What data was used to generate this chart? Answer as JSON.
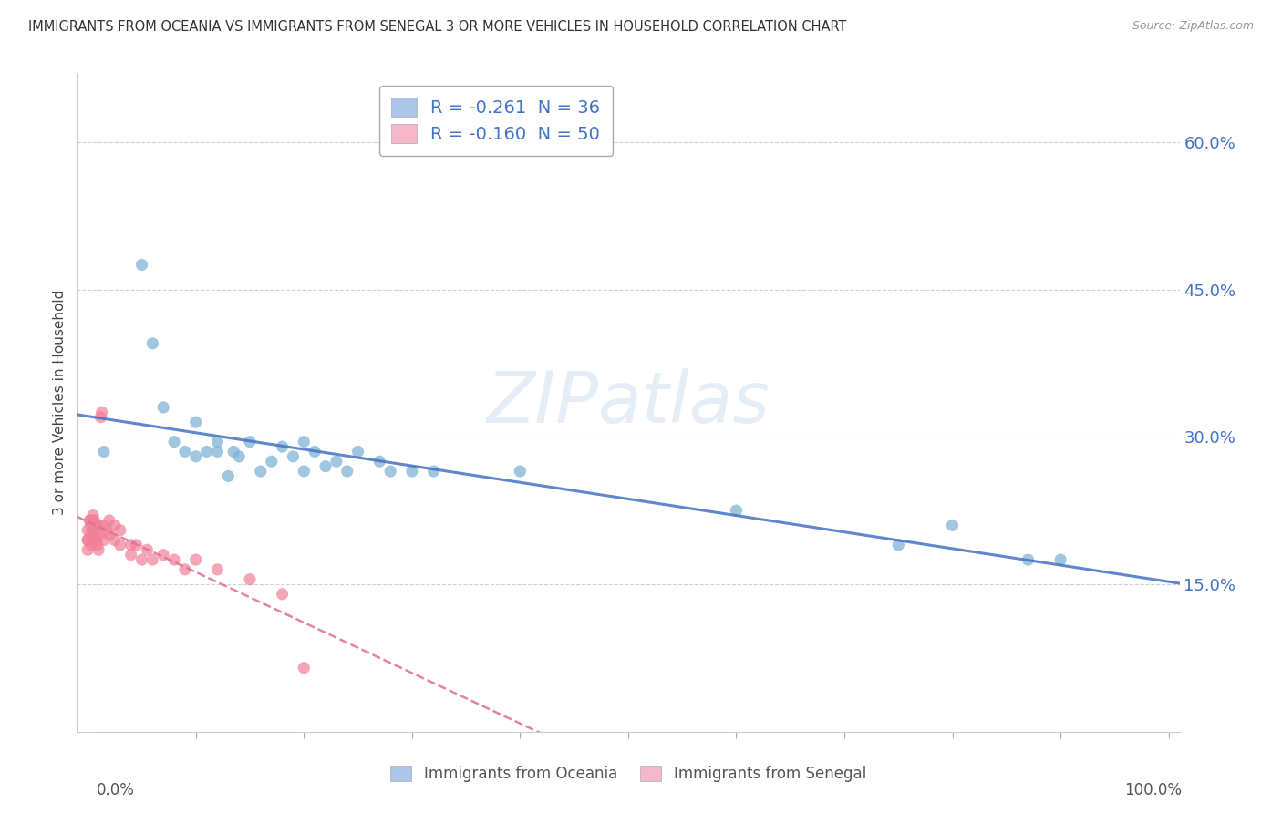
{
  "title": "IMMIGRANTS FROM OCEANIA VS IMMIGRANTS FROM SENEGAL 3 OR MORE VEHICLES IN HOUSEHOLD CORRELATION CHART",
  "source": "Source: ZipAtlas.com",
  "ylabel": "3 or more Vehicles in Household",
  "ytick_vals": [
    0.15,
    0.3,
    0.45,
    0.6
  ],
  "ytick_labels": [
    "15.0%",
    "30.0%",
    "45.0%",
    "60.0%"
  ],
  "legend1_text": "R = -0.261  N = 36",
  "legend2_text": "R = -0.160  N = 50",
  "legend1_color": "#adc6e8",
  "legend2_color": "#f5b8cb",
  "scatter1_color": "#7ab0d4",
  "scatter2_color": "#f08098",
  "line1_color": "#4472c4",
  "line2_color": "#e07090",
  "watermark": "ZIPatlas",
  "background_color": "#ffffff",
  "grid_color": "#cccccc",
  "oceania_x": [
    0.015,
    0.05,
    0.06,
    0.07,
    0.08,
    0.09,
    0.1,
    0.1,
    0.11,
    0.12,
    0.12,
    0.13,
    0.135,
    0.14,
    0.15,
    0.16,
    0.17,
    0.18,
    0.19,
    0.2,
    0.2,
    0.21,
    0.22,
    0.23,
    0.24,
    0.25,
    0.27,
    0.28,
    0.3,
    0.32,
    0.4,
    0.6,
    0.75,
    0.8,
    0.87,
    0.9
  ],
  "oceania_y": [
    0.285,
    0.475,
    0.395,
    0.33,
    0.295,
    0.285,
    0.315,
    0.28,
    0.285,
    0.295,
    0.285,
    0.26,
    0.285,
    0.28,
    0.295,
    0.265,
    0.275,
    0.29,
    0.28,
    0.295,
    0.265,
    0.285,
    0.27,
    0.275,
    0.265,
    0.285,
    0.275,
    0.265,
    0.265,
    0.265,
    0.265,
    0.225,
    0.19,
    0.21,
    0.175,
    0.175
  ],
  "senegal_x": [
    0.0,
    0.0,
    0.0,
    0.0,
    0.002,
    0.002,
    0.003,
    0.003,
    0.003,
    0.004,
    0.004,
    0.005,
    0.005,
    0.005,
    0.006,
    0.006,
    0.007,
    0.007,
    0.008,
    0.008,
    0.009,
    0.009,
    0.01,
    0.01,
    0.01,
    0.012,
    0.013,
    0.015,
    0.015,
    0.018,
    0.02,
    0.02,
    0.025,
    0.025,
    0.03,
    0.03,
    0.04,
    0.04,
    0.045,
    0.05,
    0.055,
    0.06,
    0.07,
    0.08,
    0.09,
    0.1,
    0.12,
    0.15,
    0.18,
    0.2
  ],
  "senegal_y": [
    0.205,
    0.195,
    0.195,
    0.185,
    0.215,
    0.215,
    0.21,
    0.2,
    0.19,
    0.215,
    0.205,
    0.22,
    0.205,
    0.195,
    0.215,
    0.2,
    0.21,
    0.195,
    0.21,
    0.195,
    0.205,
    0.19,
    0.21,
    0.2,
    0.185,
    0.32,
    0.325,
    0.21,
    0.195,
    0.205,
    0.215,
    0.2,
    0.21,
    0.195,
    0.205,
    0.19,
    0.19,
    0.18,
    0.19,
    0.175,
    0.185,
    0.175,
    0.18,
    0.175,
    0.165,
    0.175,
    0.165,
    0.155,
    0.14,
    0.065
  ]
}
